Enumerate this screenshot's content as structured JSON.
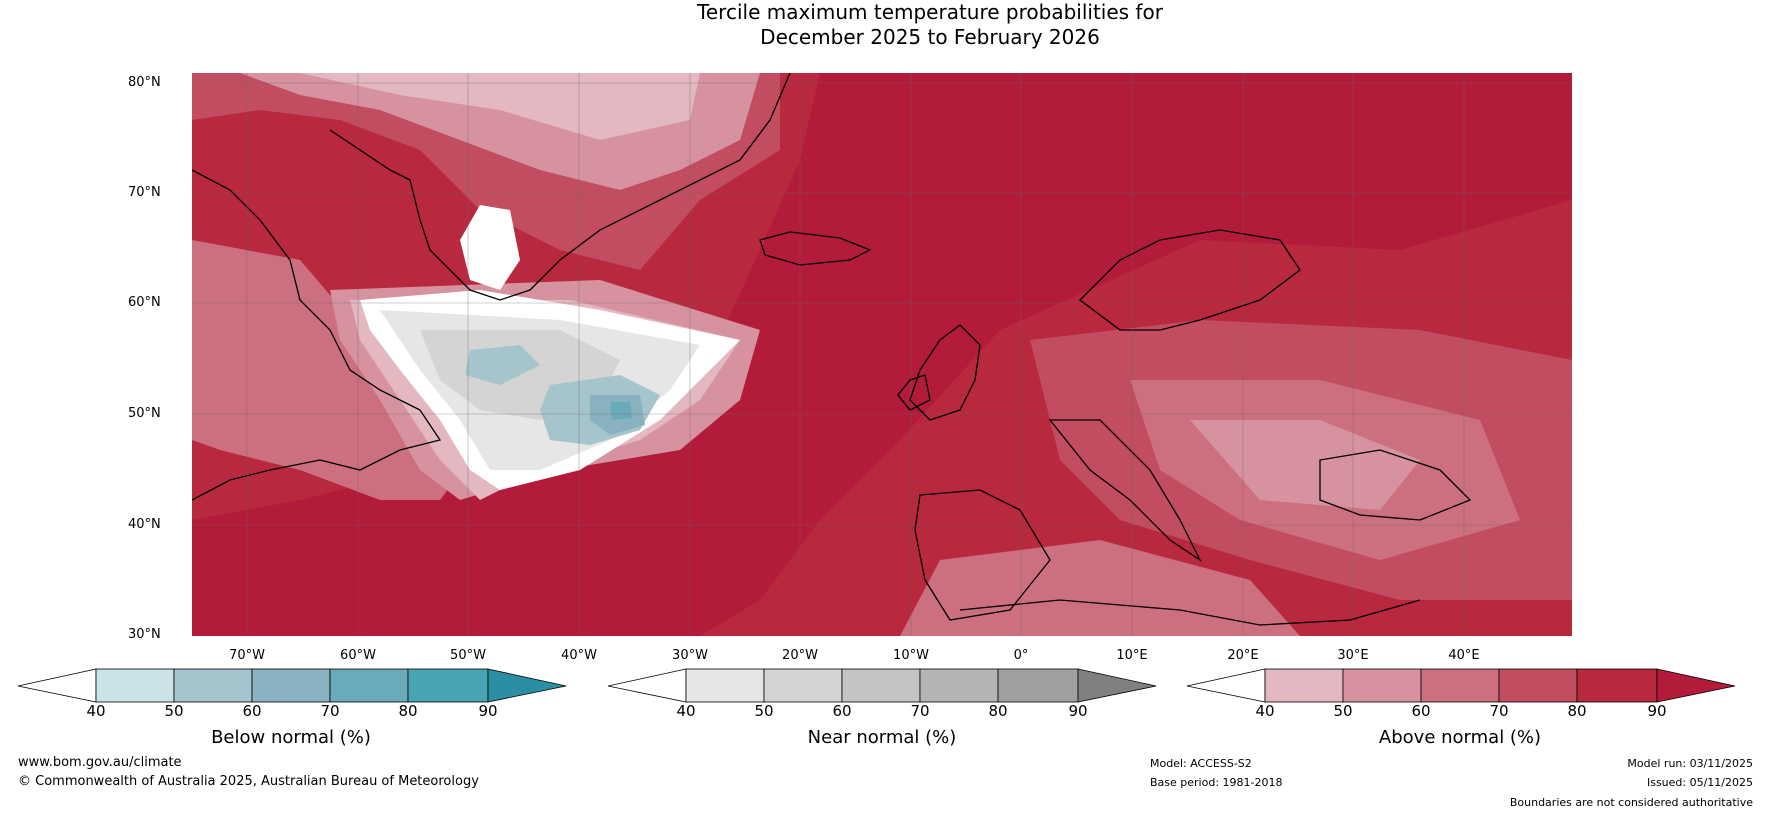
{
  "title": {
    "line1": "Tercile maximum temperature probabilities for",
    "line2": "December 2025 to February 2026"
  },
  "map": {
    "lat_labels": [
      "80°N",
      "70°N",
      "60°N",
      "50°N",
      "40°N",
      "30°N"
    ],
    "lon_labels": [
      "70°W",
      "60°W",
      "50°W",
      "40°W",
      "30°W",
      "20°W",
      "10°W",
      "0°",
      "10°E",
      "20°E",
      "30°E",
      "40°E"
    ],
    "colors": {
      "land_outline": "#000000",
      "borders": "#888888",
      "above_dominant": "#b31b3a"
    }
  },
  "colorbars": [
    {
      "label": "Below normal (%)",
      "ticks": [
        "40",
        "50",
        "60",
        "70",
        "80",
        "90"
      ],
      "colors": [
        "#ffffff",
        "#cbe2e8",
        "#a6c4cc",
        "#88b2bf",
        "#69aabb",
        "#48a3b3",
        "#2b8fa3"
      ]
    },
    {
      "label": "Near normal (%)",
      "ticks": [
        "40",
        "50",
        "60",
        "70",
        "80",
        "90"
      ],
      "colors": [
        "#ffffff",
        "#e6e6e6",
        "#d4d4d4",
        "#c4c4c4",
        "#b4b4b4",
        "#a0a0a0",
        "#808080"
      ]
    },
    {
      "label": "Above normal (%)",
      "ticks": [
        "40",
        "50",
        "60",
        "70",
        "80",
        "90"
      ],
      "colors": [
        "#ffffff",
        "#e3b8c0",
        "#d6939f",
        "#cc707f",
        "#c24d60",
        "#b8283f",
        "#b31b3a"
      ]
    }
  ],
  "footer": {
    "website": "www.bom.gov.au/climate",
    "copyright": "© Commonwealth of Australia 2025, Australian Bureau of Meteorology",
    "model": "Model: ACCESS-S2",
    "base_period": "Base period: 1981-2018",
    "model_run": "Model run: 03/11/2025",
    "issued": "Issued: 05/11/2025",
    "disclaimer": "Boundaries are not considered authoritative"
  }
}
